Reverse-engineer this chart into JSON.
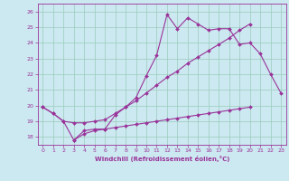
{
  "xlabel": "Windchill (Refroidissement éolien,°C)",
  "xlim": [
    -0.5,
    23.5
  ],
  "ylim": [
    17.5,
    26.5
  ],
  "xticks": [
    0,
    1,
    2,
    3,
    4,
    5,
    6,
    7,
    8,
    9,
    10,
    11,
    12,
    13,
    14,
    15,
    16,
    17,
    18,
    19,
    20,
    21,
    22,
    23
  ],
  "yticks": [
    18,
    19,
    20,
    21,
    22,
    23,
    24,
    25,
    26
  ],
  "bg_color": "#cce8f0",
  "grid_color": "#99ccbb",
  "line_color": "#993399",
  "line1_x": [
    0,
    1,
    2,
    3,
    4,
    5,
    6,
    7,
    8,
    9,
    10,
    11,
    12,
    13,
    14,
    15,
    16,
    17,
    18,
    19,
    20,
    21,
    22,
    23
  ],
  "line1_y": [
    19.9,
    19.5,
    19.0,
    17.8,
    18.4,
    18.5,
    18.5,
    19.4,
    19.9,
    20.5,
    21.9,
    23.2,
    25.8,
    24.9,
    25.6,
    25.2,
    24.8,
    24.9,
    24.9,
    23.9,
    24.0,
    23.3,
    22.0,
    20.8
  ],
  "line2_x": [
    0,
    1,
    2,
    3,
    4,
    5,
    6,
    7,
    8,
    9,
    10,
    11,
    12,
    13,
    14,
    15,
    16,
    17,
    18,
    19,
    20
  ],
  "line2_y": [
    19.9,
    19.5,
    19.0,
    18.9,
    18.9,
    19.0,
    19.1,
    19.5,
    19.9,
    20.3,
    20.8,
    21.3,
    21.8,
    22.2,
    22.7,
    23.1,
    23.5,
    23.9,
    24.3,
    24.8,
    25.2
  ],
  "line3_x": [
    3,
    4,
    5,
    6,
    7,
    8,
    9,
    10,
    11,
    12,
    13,
    14,
    15,
    16,
    17,
    18,
    19,
    20
  ],
  "line3_y": [
    17.8,
    18.2,
    18.4,
    18.5,
    18.6,
    18.7,
    18.8,
    18.9,
    19.0,
    19.1,
    19.2,
    19.3,
    19.4,
    19.5,
    19.6,
    19.7,
    19.8,
    19.9
  ]
}
